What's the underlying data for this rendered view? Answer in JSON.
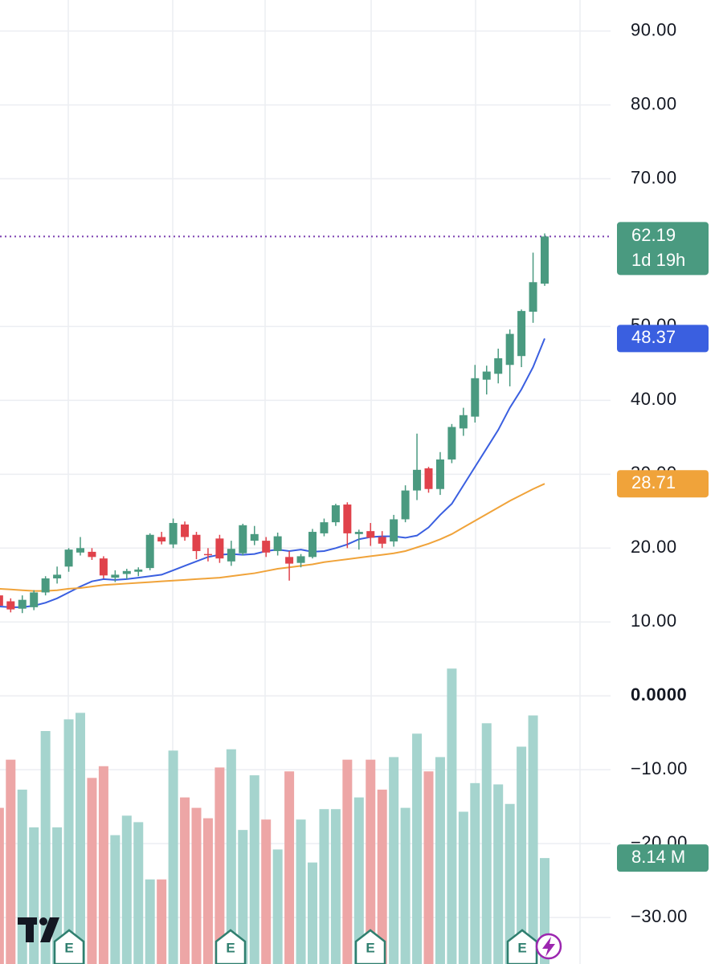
{
  "chart_data": {
    "type": "candlestick",
    "up_color": "#4a9a80",
    "down_color": "#e0424b",
    "volume_up_color": "#a5d4ce",
    "volume_down_color": "#eda6a6",
    "ylim": [
      -36.3,
      94.2
    ],
    "yticks": [
      {
        "value": 90,
        "label": "90.00"
      },
      {
        "value": 80,
        "label": "80.00"
      },
      {
        "value": 70,
        "label": "70.00"
      },
      {
        "value": 50,
        "label": "50.00"
      },
      {
        "value": 40,
        "label": "40.00"
      },
      {
        "value": 30,
        "label": "30.00"
      },
      {
        "value": 20,
        "label": "20.00"
      },
      {
        "value": 10,
        "label": "10.00"
      },
      {
        "value": 0,
        "label": "0.0000"
      },
      {
        "value": -10,
        "label": "−10.00"
      },
      {
        "value": -20,
        "label": "−20.00"
      },
      {
        "value": -30,
        "label": "−30.00"
      }
    ],
    "grid": true,
    "ohlc": {
      "open": [
        13.6,
        12.8,
        11.8,
        12.0,
        14.0,
        15.9,
        17.5,
        19.4,
        19.5,
        18.6,
        16.0,
        16.5,
        16.8,
        17.3,
        21.5,
        20.5,
        23.2,
        21.8,
        19.2,
        21.3,
        18.2,
        19.3,
        21.0,
        21.0,
        19.6,
        18.8,
        18.0,
        18.8,
        22.0,
        23.5,
        25.9,
        21.9,
        22.3,
        21.5,
        20.9,
        23.9,
        27.8,
        30.8,
        28.0,
        32.0,
        36.2,
        37.8,
        42.8,
        43.6,
        44.8,
        46.0,
        52.0,
        55.8
      ],
      "high": [
        14.0,
        13.2,
        13.6,
        14.3,
        16.2,
        17.5,
        20.0,
        21.5,
        20.0,
        18.9,
        17.0,
        17.2,
        17.4,
        22.0,
        22.2,
        24.0,
        23.6,
        22.2,
        20.0,
        21.8,
        21.0,
        23.3,
        23.0,
        21.5,
        22.1,
        19.6,
        19.2,
        22.6,
        24.0,
        26.0,
        26.2,
        22.5,
        23.4,
        22.3,
        24.5,
        28.5,
        35.5,
        31.0,
        33.0,
        36.8,
        39.0,
        44.8,
        44.7,
        47.0,
        49.6,
        52.3,
        60.0,
        62.6
      ],
      "low": [
        11.8,
        11.3,
        11.2,
        11.6,
        13.6,
        15.2,
        16.8,
        19.0,
        18.4,
        15.9,
        15.4,
        15.8,
        16.2,
        17.0,
        20.5,
        20.0,
        21.0,
        18.5,
        18.2,
        18.0,
        17.6,
        19.0,
        20.4,
        18.8,
        19.0,
        15.6,
        17.4,
        18.6,
        21.6,
        23.0,
        20.0,
        19.8,
        20.3,
        20.0,
        20.2,
        23.5,
        26.5,
        27.5,
        27.2,
        31.5,
        35.2,
        37.0,
        40.8,
        42.3,
        41.9,
        44.5,
        50.5,
        55.5
      ],
      "close": [
        12.2,
        11.7,
        13.0,
        14.0,
        15.9,
        16.4,
        19.8,
        20.0,
        18.8,
        16.3,
        16.4,
        16.9,
        17.1,
        21.8,
        20.9,
        23.4,
        21.5,
        19.6,
        19.1,
        18.6,
        19.9,
        23.1,
        21.9,
        19.4,
        21.6,
        17.9,
        18.9,
        22.2,
        23.5,
        25.8,
        22.0,
        22.2,
        21.4,
        20.6,
        23.9,
        27.8,
        30.6,
        28.0,
        32.0,
        36.4,
        38.0,
        43.0,
        43.9,
        45.7,
        49.0,
        52.1,
        56.0,
        62.19
      ]
    },
    "countdown": "1d 19h",
    "last_line_color": "#7b3fb0",
    "overlays": [
      {
        "color": "#3a5fe0",
        "values": [
          12.1,
          12.0,
          12.0,
          12.2,
          12.6,
          13.2,
          14.0,
          14.8,
          15.5,
          15.8,
          15.7,
          15.8,
          16.0,
          16.2,
          16.4,
          17.0,
          17.6,
          18.2,
          18.8,
          19.1,
          19.2,
          19.1,
          19.2,
          19.6,
          19.8,
          19.6,
          19.8,
          19.5,
          19.6,
          20.0,
          20.5,
          21.2,
          21.5,
          21.6,
          21.6,
          21.4,
          21.7,
          22.8,
          24.5,
          26.0,
          28.5,
          31.0,
          33.5,
          36.0,
          39.0,
          41.5,
          44.5,
          48.37
        ]
      },
      {
        "color": "#f0a33a",
        "values": [
          14.5,
          14.4,
          14.3,
          14.2,
          14.2,
          14.3,
          14.5,
          14.6,
          14.8,
          15.0,
          15.1,
          15.2,
          15.3,
          15.4,
          15.5,
          15.6,
          15.7,
          15.8,
          15.9,
          16.0,
          16.2,
          16.4,
          16.6,
          16.9,
          17.2,
          17.4,
          17.6,
          17.8,
          18.1,
          18.3,
          18.5,
          18.7,
          18.9,
          19.1,
          19.3,
          19.6,
          20.1,
          20.6,
          21.2,
          21.9,
          22.8,
          23.7,
          24.6,
          25.5,
          26.4,
          27.2,
          28.0,
          28.71
        ]
      }
    ],
    "volume": {
      "ylim": [
        0,
        25
      ],
      "values": [
        12,
        15.7,
        13.4,
        10.5,
        17.9,
        10.5,
        18.8,
        19.3,
        14.3,
        15.2,
        9.9,
        11.4,
        10.9,
        6.5,
        6.5,
        16.4,
        12.8,
        12,
        11.2,
        15.1,
        16.5,
        10.3,
        14.5,
        11.1,
        8.8,
        14.8,
        11.1,
        7.8,
        11.9,
        11.9,
        15.7,
        12.8,
        15.7,
        13.4,
        15.9,
        12,
        17.7,
        14.8,
        15.9,
        22.7,
        11.7,
        13.9,
        18.5,
        13.8,
        12.3,
        16.7,
        19.1,
        8.14
      ],
      "last_label": "8.14 M"
    },
    "earnings_marker": "E"
  }
}
